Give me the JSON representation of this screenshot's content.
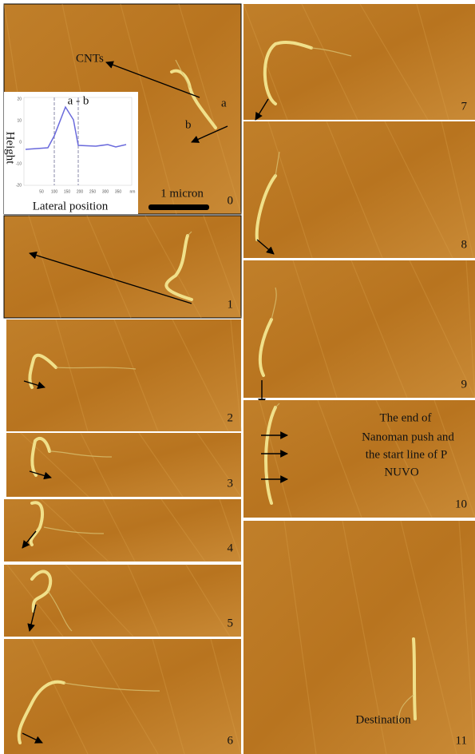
{
  "panels": [
    {
      "label": "0"
    },
    {
      "label": "1"
    },
    {
      "label": "2"
    },
    {
      "label": "3"
    },
    {
      "label": "4"
    },
    {
      "label": "5"
    },
    {
      "label": "6"
    },
    {
      "label": "7"
    },
    {
      "label": "8"
    },
    {
      "label": "9"
    },
    {
      "label": "10"
    },
    {
      "label": "11"
    }
  ],
  "annotations": {
    "cnts": "CNTs",
    "a": "a",
    "b": "b",
    "scale_bar": "1 micron",
    "note": [
      "The end of",
      "Nanoman push and",
      "the start line of P",
      "NUVO"
    ],
    "destination": "Destination"
  },
  "inset": {
    "title": "a - b",
    "y_label": "Height",
    "x_label": "Lateral position",
    "yticks": [
      "20",
      "10",
      "0",
      "-10",
      "-20"
    ],
    "xticks": [
      "50",
      "100",
      "150",
      "200",
      "250",
      "300",
      "350"
    ],
    "x_unit": "nm"
  }
}
